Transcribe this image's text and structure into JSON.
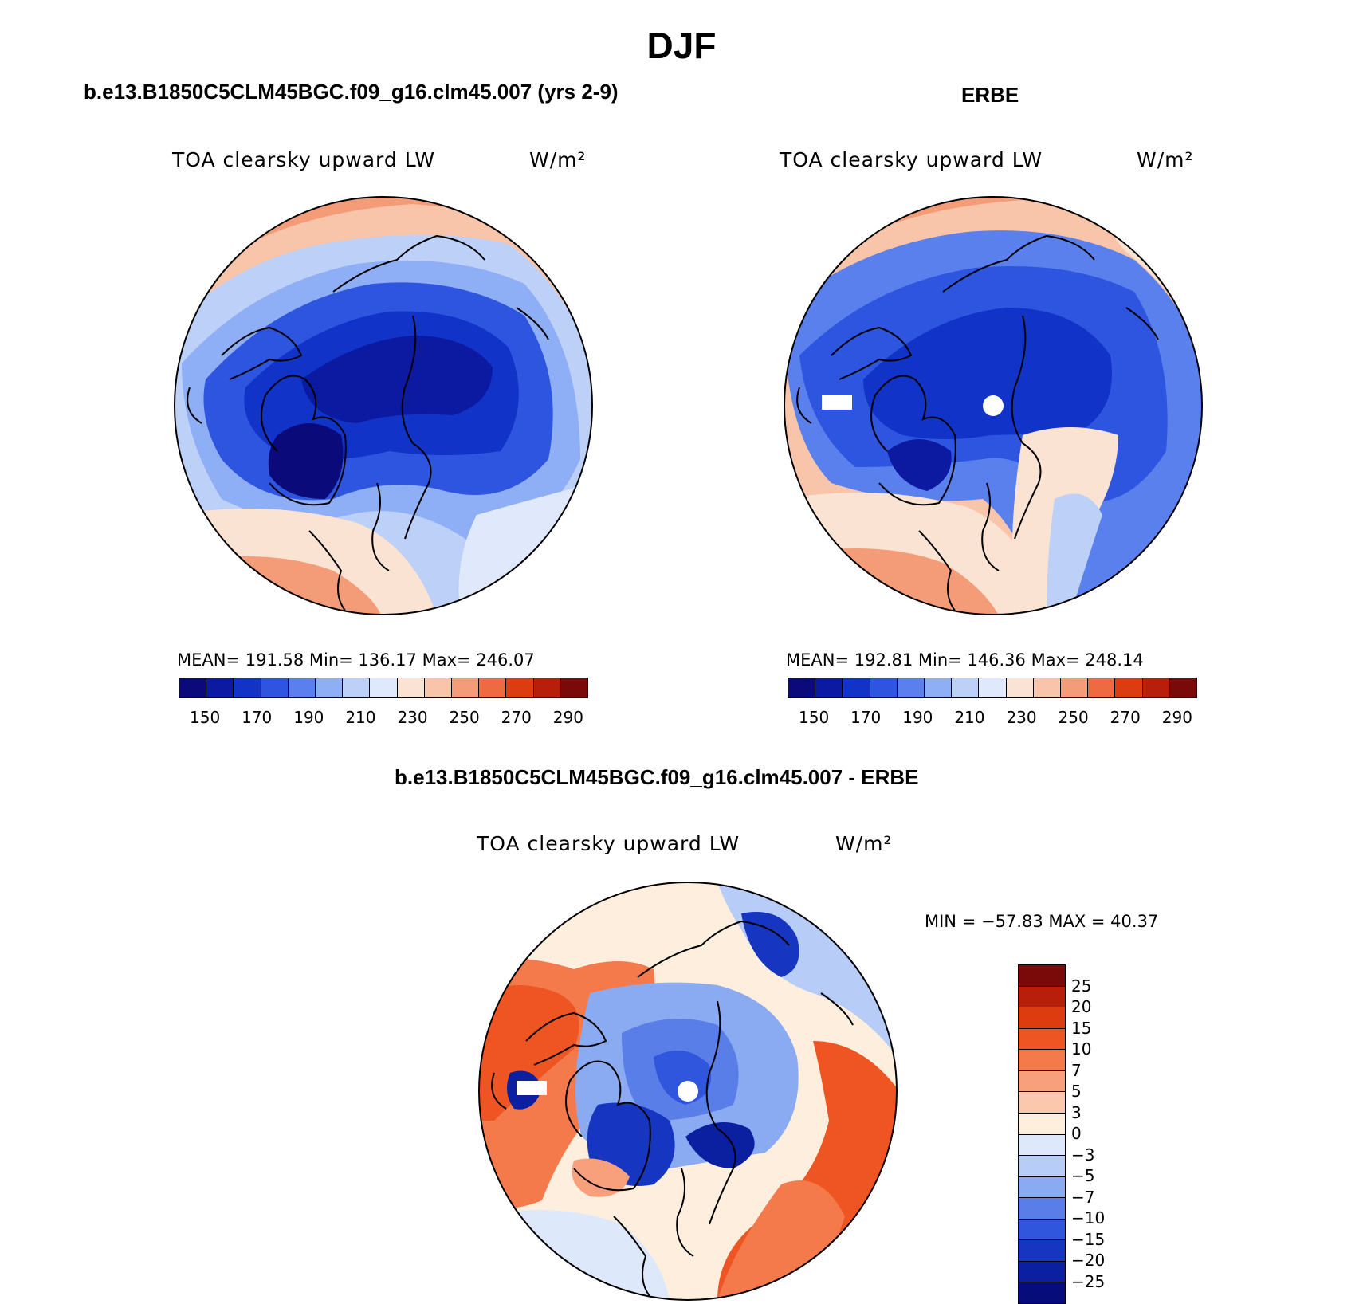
{
  "title": "DJF",
  "panels": [
    {
      "id": "model",
      "title": "b.e13.B1850C5CLM45BGC.f09_g16.clm45.007 (yrs 2-9)",
      "variable": "TOA clearsky upward LW",
      "units": "W/m²",
      "stats": "MEAN= 191.58   Min= 136.17   Max= 246.07",
      "colorbar": {
        "colors": [
          "#0a0a7a",
          "#0b1aa0",
          "#1133c8",
          "#2d55e0",
          "#5a80ee",
          "#8eaef5",
          "#bcd0f8",
          "#dfe9fb",
          "#fbe3d3",
          "#f8c4aa",
          "#f49c78",
          "#ee6a40",
          "#dd3c10",
          "#b81e0a",
          "#7a0a0a"
        ],
        "ticks": [
          "150",
          "170",
          "190",
          "210",
          "230",
          "250",
          "270",
          "290"
        ]
      }
    },
    {
      "id": "obs",
      "title": "ERBE",
      "variable": "TOA clearsky upward LW",
      "units": "W/m²",
      "stats": "MEAN= 192.81   Min= 146.36   Max= 248.14",
      "colorbar": {
        "colors": [
          "#0a0a7a",
          "#0b1aa0",
          "#1133c8",
          "#2d55e0",
          "#5a80ee",
          "#8eaef5",
          "#bcd0f8",
          "#dfe9fb",
          "#fbe3d3",
          "#f8c4aa",
          "#f49c78",
          "#ee6a40",
          "#dd3c10",
          "#b81e0a",
          "#7a0a0a"
        ],
        "ticks": [
          "150",
          "170",
          "190",
          "210",
          "230",
          "250",
          "270",
          "290"
        ]
      }
    },
    {
      "id": "diff",
      "title": "b.e13.B1850C5CLM45BGC.f09_g16.clm45.007 - ERBE",
      "variable": "TOA clearsky upward LW",
      "units": "W/m²",
      "stats": "MIN = −57.83 MAX =  40.37",
      "colorbar": {
        "colors": [
          "#7a0a0a",
          "#b81e0a",
          "#dd3c10",
          "#ee5522",
          "#f47a4c",
          "#f8a07c",
          "#fbc8ae",
          "#fdeede",
          "#dde8fb",
          "#b7cdf7",
          "#8aaaf2",
          "#5a7ee8",
          "#2f56dc",
          "#1636c2",
          "#0b20a0",
          "#060c7a"
        ],
        "ticks": [
          "25",
          "20",
          "15",
          "10",
          "7",
          "5",
          "3",
          "0",
          "−3",
          "−5",
          "−7",
          "−10",
          "−15",
          "−20",
          "−25"
        ]
      }
    }
  ],
  "map_colors": {
    "deep_blue": "#0b1aa0",
    "blue": "#1a3ad0",
    "mid_blue": "#3a66e4",
    "light_blue": "#8eaef5",
    "pale_blue": "#d3e1fa",
    "pale_peach": "#fbe3d3",
    "peach": "#f8c4aa",
    "salmon": "#f49c78",
    "orange": "#ee6a40",
    "red": "#dd3c10",
    "dark_red": "#b81e0a"
  }
}
